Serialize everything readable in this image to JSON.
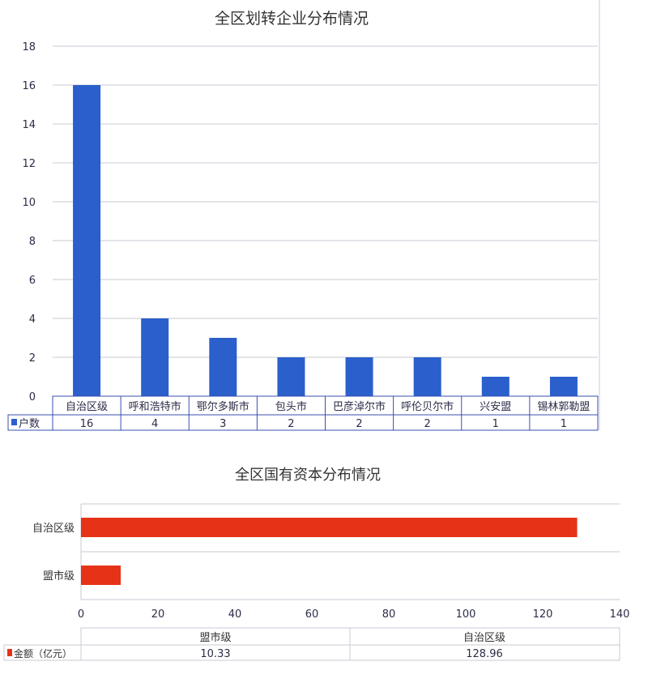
{
  "chart_data": [
    {
      "type": "bar",
      "title": "全区划转企业分布情况",
      "categories": [
        "自治区级",
        "呼和浩特市",
        "鄂尔多斯市",
        "包头市",
        "巴彦淖尔市",
        "呼伦贝尔市",
        "兴安盟",
        "锡林郭勒盟"
      ],
      "series": [
        {
          "name": "户数",
          "values": [
            16,
            4,
            3,
            2,
            2,
            2,
            1,
            1
          ],
          "color": "#2a5fcc"
        }
      ],
      "ylim": [
        0,
        18
      ],
      "yticks": [
        0,
        2,
        4,
        6,
        8,
        10,
        12,
        14,
        16,
        18
      ],
      "grid": true,
      "data_table": true
    },
    {
      "type": "bar",
      "orientation": "horizontal",
      "title": "全区国有资本分布情况",
      "categories": [
        "盟市级",
        "自治区级"
      ],
      "series": [
        {
          "name": "金额（亿元）",
          "values": [
            10.33,
            128.96
          ],
          "color": "#e63318"
        }
      ],
      "xlim": [
        0,
        140
      ],
      "xticks": [
        0,
        20,
        40,
        60,
        80,
        100,
        120,
        140
      ],
      "grid": true,
      "data_table": true
    }
  ]
}
